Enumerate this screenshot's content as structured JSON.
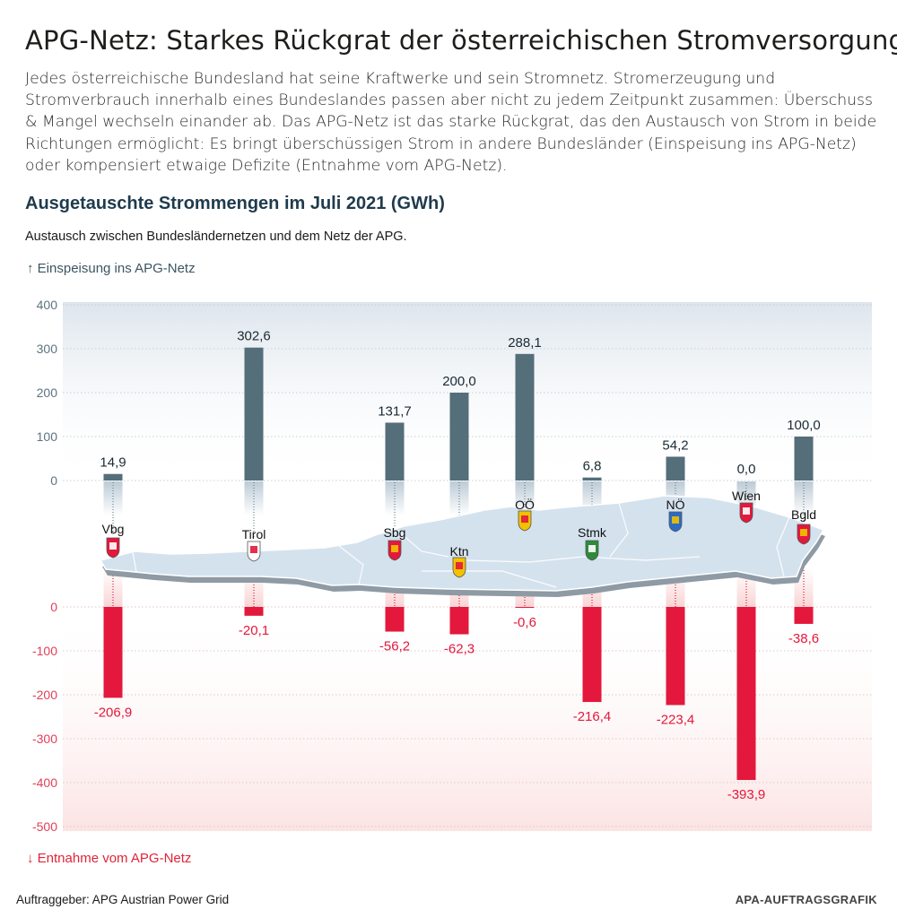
{
  "header": {
    "title": "APG-Netz: Starkes Rückgrat der österreichischen Stromversorgung",
    "intro": "Jedes österreichische Bundesland hat seine Kraftwerke und sein Stromnetz. Stromerzeugung und Stromverbrauch innerhalb eines Bundeslandes passen aber nicht zu jedem Zeitpunkt zusammen: Überschuss & Mangel wechseln einander ab. Das APG-Netz ist das starke Rückgrat, das den Austausch von Strom in beide Richtungen ermöglicht: Es bringt überschüssigen Strom in andere Bundesländer (Einspeisung ins APG-Netz) oder kompensiert etwaige Defizite (Entnahme vom APG-Netz)."
  },
  "chart_title": "Ausgetauschte Strommengen im Juli 2021 (GWh)",
  "chart_subtitle": "Austausch zwischen Bundesländernetzen und dem Netz der APG.",
  "direction_up": "↑ Einspeisung ins APG-Netz",
  "direction_down": "↓ Entnahme vom APG-Netz",
  "footer": {
    "credit": "Auftraggeber: APG Austrian Power Grid",
    "brand": "APA-AUFTRAGSGRAFIK"
  },
  "colors": {
    "feed_in": "#546e7a",
    "withdrawal": "#e3183c",
    "title": "#1f3b4d",
    "map": "#d4e2ee"
  },
  "chart_data": {
    "type": "bar",
    "categories": [
      "Vbg",
      "Tirol",
      "Sbg",
      "Ktn",
      "OÖ",
      "Stmk",
      "NÖ",
      "Wien",
      "Bgld"
    ],
    "series": [
      {
        "name": "Einspeisung ins APG-Netz",
        "values": [
          14.9,
          302.6,
          131.7,
          200.0,
          288.1,
          6.8,
          54.2,
          0.0,
          100.0
        ],
        "labels": [
          "14,9",
          "302,6",
          "131,7",
          "200,0",
          "288,1",
          "6,8",
          "54,2",
          "0,0",
          "100,0"
        ]
      },
      {
        "name": "Entnahme vom APG-Netz",
        "values": [
          -206.9,
          -20.1,
          -56.2,
          -62.3,
          -0.6,
          -216.4,
          -223.4,
          -393.9,
          -38.6
        ],
        "labels": [
          "-206,9",
          "-20,1",
          "-56,2",
          "-62,3",
          "-0,6",
          "-216,4",
          "-223,4",
          "-393,9",
          "-38,6"
        ]
      }
    ],
    "upper_axis": {
      "ylim": [
        0,
        400
      ],
      "ticks": [
        "400",
        "300",
        "200",
        "100",
        "0"
      ]
    },
    "lower_axis": {
      "ylim": [
        -500,
        0
      ],
      "ticks": [
        "0",
        "-100",
        "-200",
        "-300",
        "-400",
        "-500"
      ]
    },
    "grid": true,
    "xlabel": "",
    "ylabel": ""
  }
}
